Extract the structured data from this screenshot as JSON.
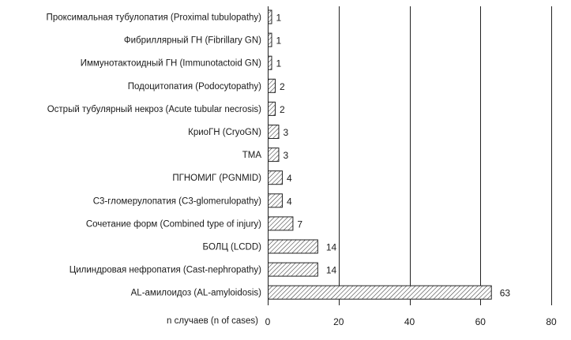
{
  "chart_data": {
    "type": "bar",
    "orientation": "horizontal",
    "categories": [
      "Проксимальная тубулопатия (Proximal tubulopathy)",
      "Фибриллярный ГН (Fibrillary GN)",
      "Иммунотактоидный ГН (Immunotactoid GN)",
      "Подоцитопатия (Podocytopathy)",
      "Острый тубулярный некроз (Acute tubular necrosis)",
      "КриоГН (CryoGN)",
      "ТМА",
      "ПГНОМИГ (PGNMID)",
      "С3-гломерулопатия (C3-glomerulopathy)",
      "Сочетание форм (Combined type of injury)",
      "БОЛЦ (LCDD)",
      "Цилиндровая нефропатия (Cast-nephropathy)",
      "AL-амилоидоз (AL-amyloidosis)"
    ],
    "values": [
      1,
      1,
      1,
      2,
      2,
      3,
      3,
      4,
      4,
      7,
      14,
      14,
      63
    ],
    "data_labels": [
      "1",
      "1",
      "1",
      "2",
      "2",
      "3",
      "3",
      "4",
      "4",
      "7",
      "14",
      "14",
      "63"
    ],
    "xlabel": "n случаев (n of cases)",
    "xlim": [
      0,
      80
    ],
    "xticks": [
      "0",
      "20",
      "40",
      "60",
      "80"
    ],
    "grid": "vertical",
    "bar_fill": "diagonal hatch",
    "colors": {
      "bar_stroke": "#222222",
      "hatch": "#333333",
      "text": "#1a1a1a",
      "background": "#ffffff"
    }
  }
}
